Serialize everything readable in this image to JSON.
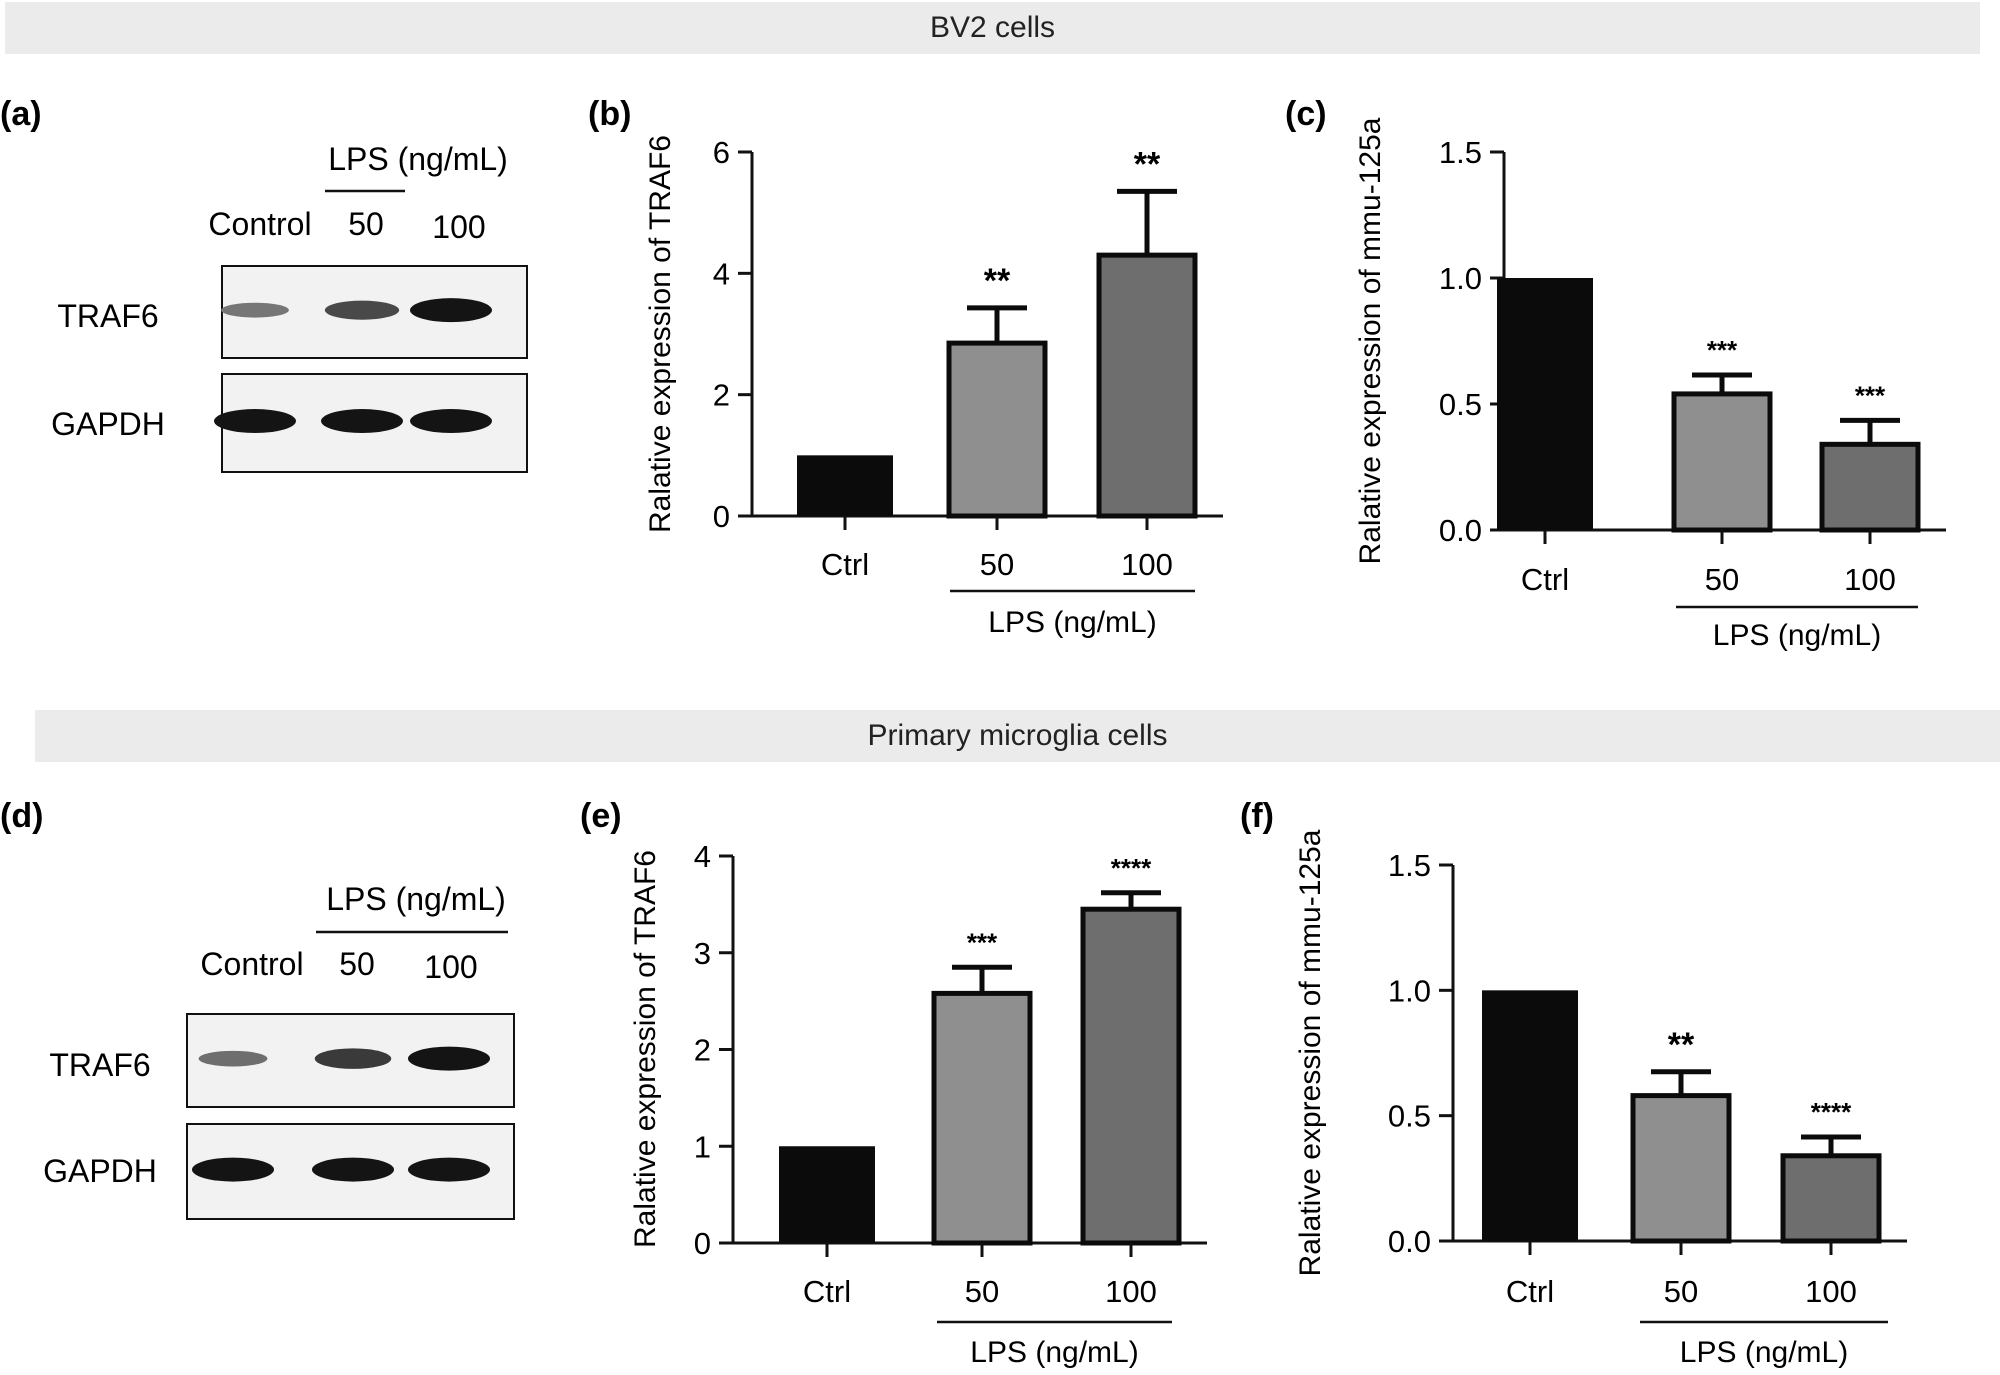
{
  "figure": {
    "sections": [
      {
        "title": "BV2 cells"
      },
      {
        "title": "Primary microglia cells"
      }
    ],
    "blots": [
      {
        "panel_label": "(a)",
        "treatment_label": "LPS (ng/mL)",
        "lane_labels": [
          "Control",
          "50",
          "100"
        ],
        "bands": [
          {
            "name": "TRAF6",
            "intensity": [
              0.35,
              0.65,
              1.0
            ]
          },
          {
            "name": "GAPDH",
            "intensity": [
              1.0,
              1.0,
              1.0
            ]
          }
        ]
      },
      {
        "panel_label": "(d)",
        "treatment_label": "LPS (ng/mL)",
        "lane_labels": [
          "Control",
          "50",
          "100"
        ],
        "bands": [
          {
            "name": "TRAF6",
            "intensity": [
              0.4,
              0.75,
              1.0
            ]
          },
          {
            "name": "GAPDH",
            "intensity": [
              1.0,
              1.0,
              1.0
            ]
          }
        ]
      }
    ],
    "colors": {
      "ctrl_bar": "#0b0b0b",
      "bar_50": "#8f8f8f",
      "bar_100": "#6e6e6e",
      "section_bg": "#ebebeb"
    }
  },
  "chart_data": [
    {
      "panel_label": "(b)",
      "type": "bar",
      "categories": [
        "Ctrl",
        "50",
        "100"
      ],
      "values": [
        1.0,
        2.85,
        4.3
      ],
      "errors": [
        0,
        0.58,
        1.05
      ],
      "significance": [
        "",
        "**",
        "**"
      ],
      "ylabel": "Ralative expression of TRAF6",
      "group_label": "LPS (ng/mL)",
      "ylim": [
        0,
        6
      ],
      "yticks": [
        "0",
        "2",
        "4",
        "6"
      ]
    },
    {
      "panel_label": "(c)",
      "type": "bar",
      "categories": [
        "Ctrl",
        "50",
        "100"
      ],
      "values": [
        1.0,
        0.54,
        0.34
      ],
      "errors": [
        0,
        0.075,
        0.095
      ],
      "significance": [
        "",
        "***",
        "***"
      ],
      "ylabel": "Ralative expression of mmu-125a",
      "group_label": "LPS (ng/mL)",
      "ylim": [
        0,
        1.5
      ],
      "yticks": [
        "0.0",
        "0.5",
        "1.0",
        "1.5"
      ]
    },
    {
      "panel_label": "(e)",
      "type": "bar",
      "categories": [
        "Ctrl",
        "50",
        "100"
      ],
      "values": [
        1.0,
        2.58,
        3.45
      ],
      "errors": [
        0,
        0.27,
        0.17
      ],
      "significance": [
        "",
        "***",
        "****"
      ],
      "ylabel": "Ralative expression of TRAF6",
      "group_label": "LPS (ng/mL)",
      "ylim": [
        0,
        4
      ],
      "yticks": [
        "0",
        "1",
        "2",
        "3",
        "4"
      ]
    },
    {
      "panel_label": "(f)",
      "type": "bar",
      "categories": [
        "Ctrl",
        "50",
        "100"
      ],
      "values": [
        1.0,
        0.58,
        0.34
      ],
      "errors": [
        0,
        0.095,
        0.075
      ],
      "significance": [
        "",
        "**",
        "****"
      ],
      "ylabel": "Ralative expression of mmu-125a",
      "group_label": "LPS (ng/mL)",
      "ylim": [
        0,
        1.5
      ],
      "yticks": [
        "0.0",
        "0.5",
        "1.0",
        "1.5"
      ]
    }
  ]
}
